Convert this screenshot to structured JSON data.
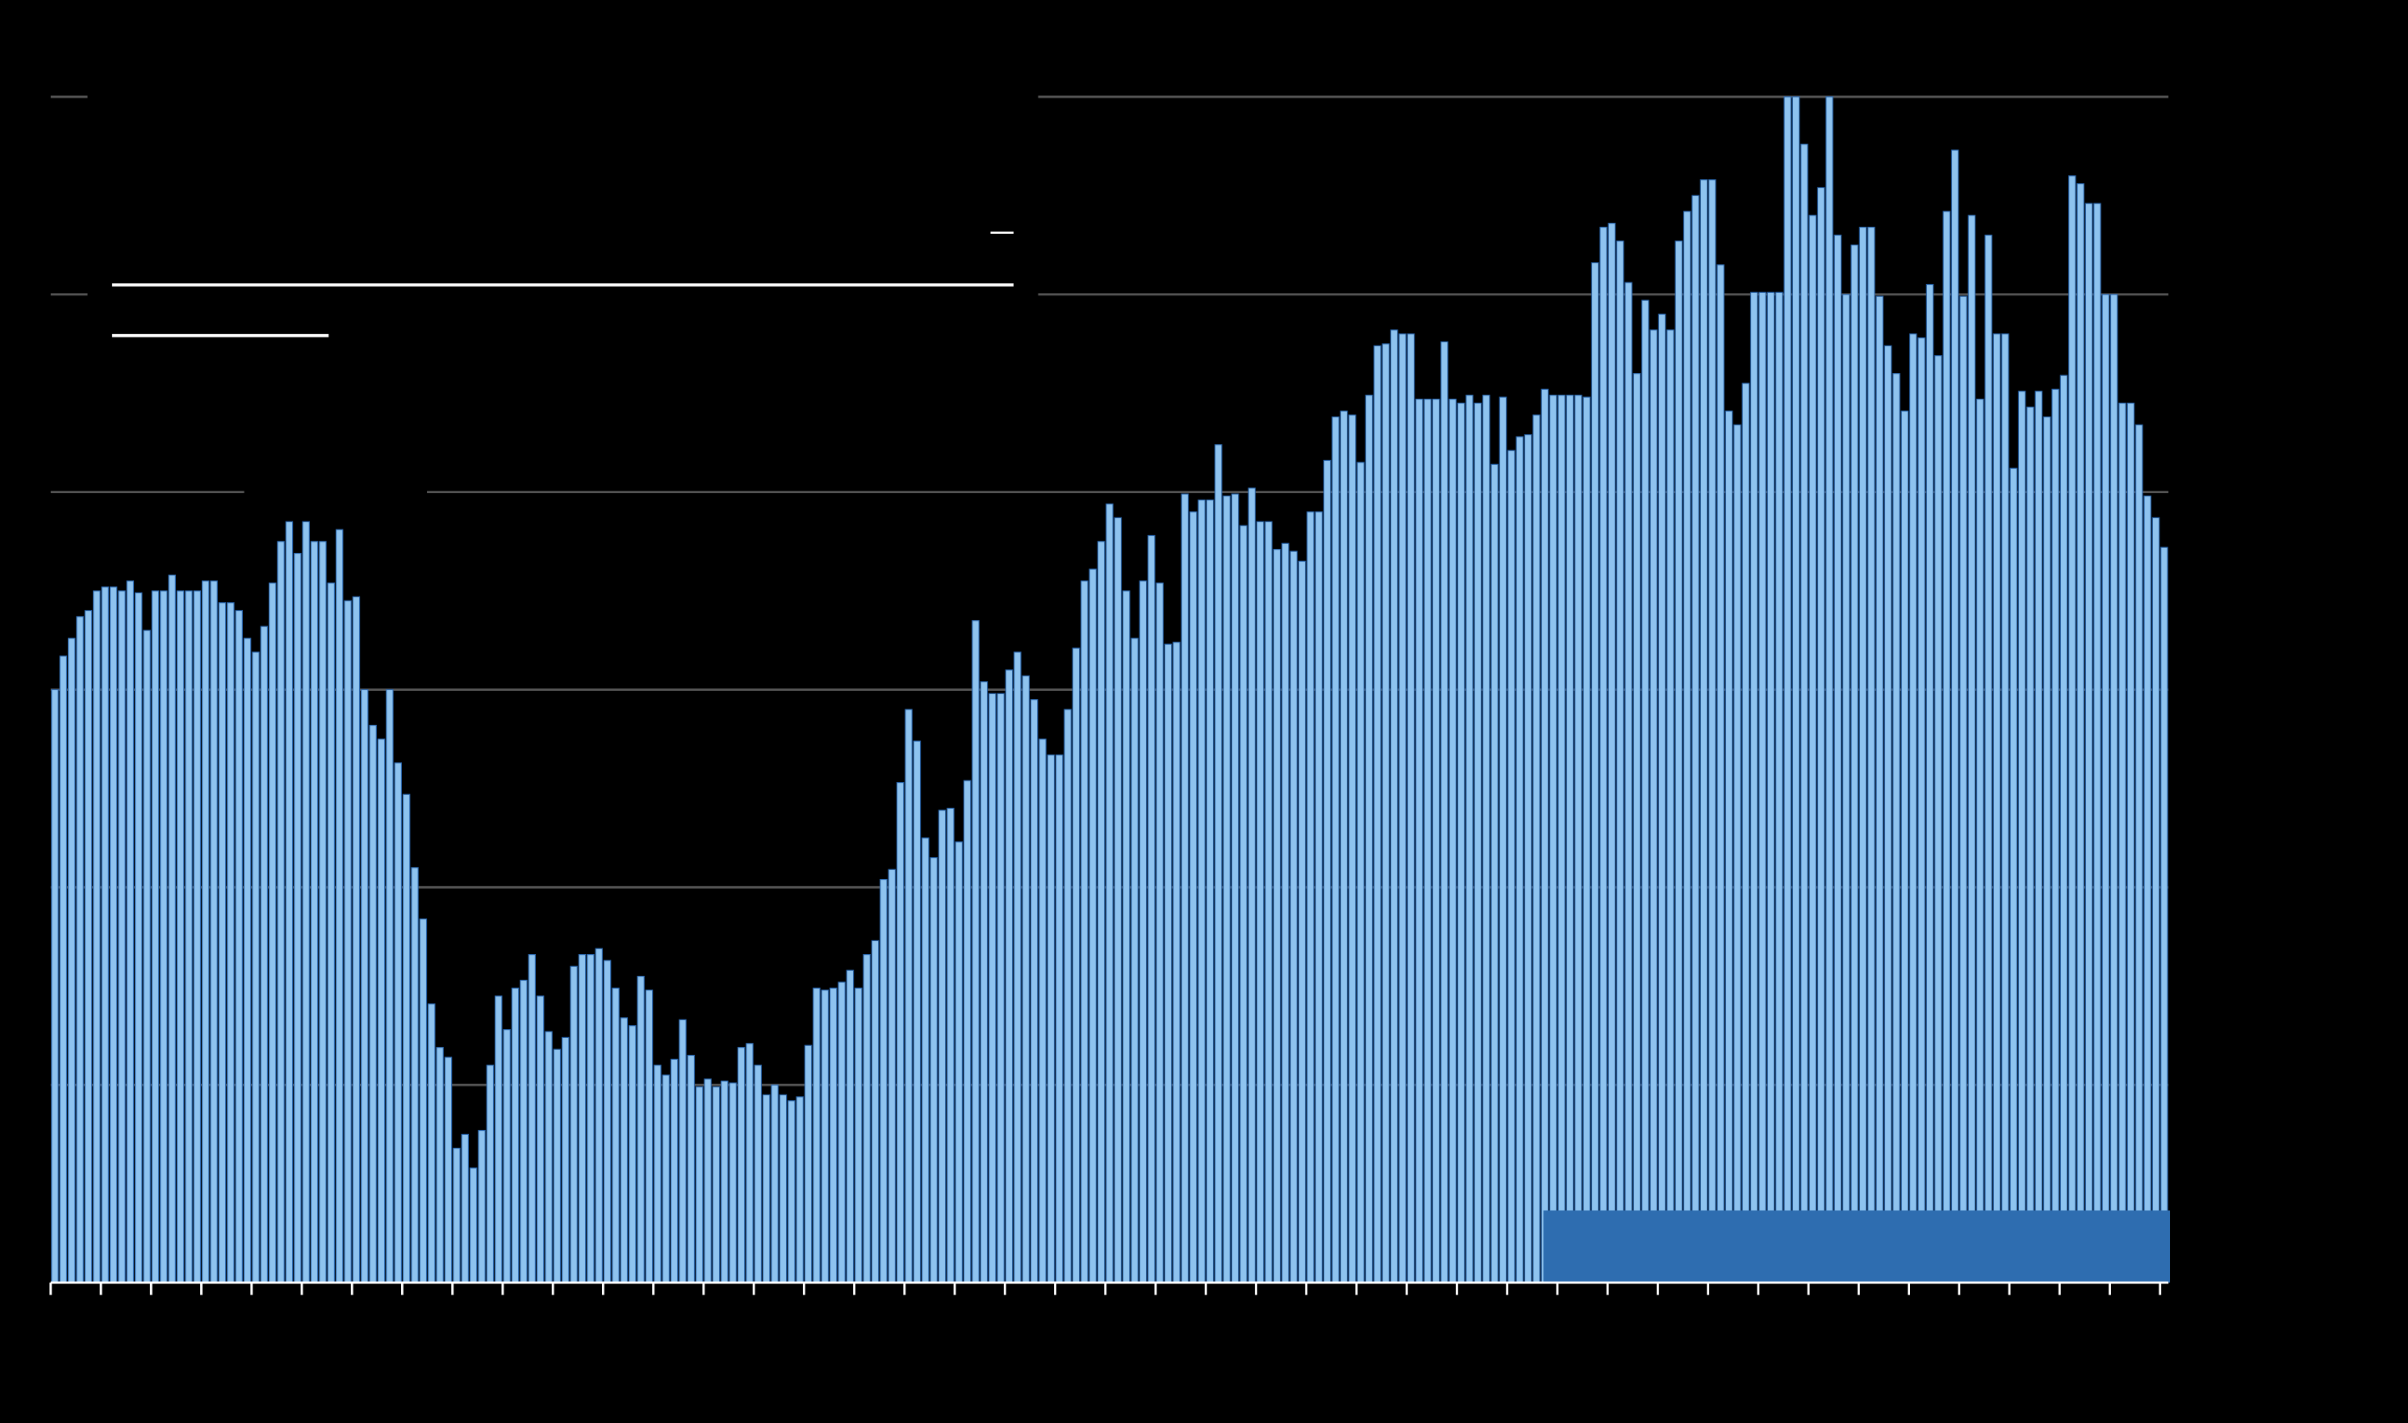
{
  "chart_data": {
    "type": "bar",
    "color": "#8ec3ef",
    "ylim": [
      0,
      6
    ],
    "yticks": [
      0,
      1,
      2,
      3,
      4,
      5,
      6
    ],
    "grid": true,
    "values": [
      3.0,
      3.17,
      3.26,
      3.37,
      3.4,
      3.5,
      3.52,
      3.52,
      3.5,
      3.55,
      3.49,
      3.3,
      3.5,
      3.5,
      3.58,
      3.5,
      3.5,
      3.5,
      3.55,
      3.55,
      3.44,
      3.44,
      3.4,
      3.26,
      3.19,
      3.32,
      3.54,
      3.75,
      3.85,
      3.69,
      3.85,
      3.75,
      3.75,
      3.54,
      3.81,
      3.45,
      3.47,
      3.0,
      2.82,
      2.75,
      3.0,
      2.63,
      2.47,
      2.1,
      1.84,
      1.41,
      1.19,
      1.14,
      0.68,
      0.75,
      0.58,
      0.77,
      1.1,
      1.45,
      1.28,
      1.49,
      1.53,
      1.66,
      1.45,
      1.27,
      1.18,
      1.24,
      1.6,
      1.66,
      1.66,
      1.69,
      1.63,
      1.49,
      1.34,
      1.3,
      1.55,
      1.48,
      1.1,
      1.05,
      1.13,
      1.33,
      1.15,
      0.99,
      1.03,
      0.99,
      1.02,
      1.01,
      1.19,
      1.21,
      1.1,
      0.95,
      1.0,
      0.95,
      0.92,
      0.94,
      1.2,
      1.49,
      1.48,
      1.49,
      1.52,
      1.58,
      1.49,
      1.66,
      1.73,
      2.04,
      2.09,
      2.53,
      2.9,
      2.74,
      2.25,
      2.15,
      2.39,
      2.4,
      2.23,
      2.54,
      3.35,
      3.04,
      2.98,
      2.98,
      3.1,
      3.19,
      3.07,
      2.95,
      2.75,
      2.67,
      2.67,
      2.9,
      3.21,
      3.55,
      3.61,
      3.75,
      3.94,
      3.87,
      3.5,
      3.26,
      3.55,
      3.78,
      3.54,
      3.23,
      3.24,
      3.99,
      3.9,
      3.96,
      3.96,
      4.24,
      3.98,
      3.99,
      3.83,
      4.02,
      3.85,
      3.85,
      3.71,
      3.74,
      3.7,
      3.65,
      3.9,
      3.9,
      4.16,
      4.38,
      4.41,
      4.39,
      4.15,
      4.49,
      4.74,
      4.75,
      4.82,
      4.8,
      4.8,
      4.47,
      4.47,
      4.47,
      4.76,
      4.47,
      4.45,
      4.49,
      4.45,
      4.49,
      4.14,
      4.48,
      4.21,
      4.28,
      4.29,
      4.39,
      4.52,
      4.49,
      4.49,
      4.49,
      4.49,
      4.48,
      5.16,
      5.34,
      5.36,
      5.27,
      5.06,
      4.6,
      4.97,
      4.82,
      4.9,
      4.82,
      5.27,
      5.42,
      5.5,
      5.58,
      5.58,
      5.15,
      4.41,
      4.34,
      4.55,
      5.01,
      5.01,
      5.01,
      5.01,
      6.0,
      6.0,
      5.76,
      5.4,
      5.54,
      6.0,
      5.3,
      5.0,
      5.25,
      5.34,
      5.34,
      4.99,
      4.74,
      4.6,
      4.41,
      4.8,
      4.78,
      5.05,
      4.69,
      5.42,
      5.73,
      4.99,
      5.4,
      4.47,
      5.3,
      4.8,
      4.8,
      4.12,
      4.51,
      4.43,
      4.51,
      4.38,
      4.52,
      4.59,
      5.6,
      5.56,
      5.46,
      5.46,
      5.0,
      5.0,
      4.45,
      4.45,
      4.34,
      3.98,
      3.87,
      3.72
    ]
  }
}
